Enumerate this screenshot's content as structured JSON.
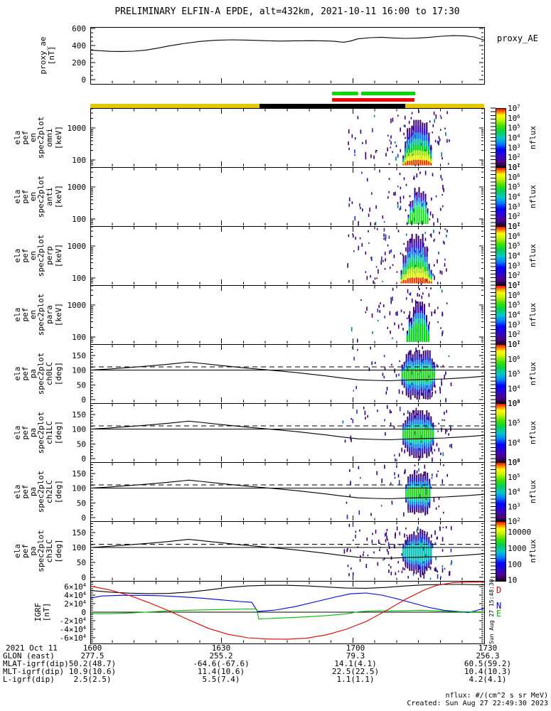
{
  "title": "PRELIMINARY ELFIN-A EPDE, alt=432km, 2021-10-11 16:00 to 17:30",
  "footer": {
    "units": "nflux: #/(cm^2 s sr MeV)",
    "created": "Created: Sun Aug 27 22:49:30 2023"
  },
  "side_timestamp": "Sun Aug 27 15:48:30",
  "colorbar_title": "nflux",
  "time_ticks": {
    "labels": [
      "1600",
      "1630",
      "1700",
      "1730"
    ],
    "fracs": [
      0,
      0.3333,
      0.6667,
      1
    ]
  },
  "axis_rows": [
    {
      "label": "2021 Oct 11",
      "values": [
        "1600",
        "1630",
        "1700",
        "1730"
      ]
    },
    {
      "label": "GLON (east)",
      "values": [
        "277.5",
        "255.2",
        "79.3",
        "256.3"
      ]
    },
    {
      "label": "MLAT-igrf(dip)",
      "values": [
        "50.2(48.7)",
        "-64.6(-67.6)",
        "14.1(4.1)",
        "60.5(59.2)"
      ]
    },
    {
      "label": "MLT-igrf(dip)",
      "values": [
        "10.9(10.6)",
        "11.4(10.6)",
        "22.5(22.5)",
        "10.4(10.3)"
      ]
    },
    {
      "label": "L-igrf(dip)",
      "values": [
        "2.5(2.5)",
        "5.5(7.4)",
        "1.1(1.1)",
        "4.2(4.1)"
      ]
    }
  ],
  "status_bars": {
    "green": {
      "color": "#00d800",
      "y": 129,
      "h": 5,
      "segments": [
        [
          0.614,
          0.68
        ],
        [
          0.688,
          0.825
        ]
      ]
    },
    "red": {
      "color": "#ee0000",
      "y": 138,
      "h": 5,
      "segments": [
        [
          0.614,
          0.823
        ]
      ]
    },
    "strip": {
      "y": 146,
      "h": 6,
      "segments": [
        {
          "x": [
            0,
            0.4296
          ],
          "color": "#e3c800"
        },
        {
          "x": [
            0.4296,
            0.7996
          ],
          "color": "#000000"
        },
        {
          "x": [
            0.7996,
            1
          ],
          "color": "#e3c800"
        }
      ]
    }
  },
  "rainbow_stops": [
    [
      "0",
      "#120024"
    ],
    [
      "0.09",
      "#4b0082"
    ],
    [
      "0.19",
      "#3300cc"
    ],
    [
      "0.30",
      "#0000ff"
    ],
    [
      "0.40",
      "#0080ff"
    ],
    [
      "0.50",
      "#00c8c8"
    ],
    [
      "0.60",
      "#00d050"
    ],
    [
      "0.70",
      "#40e000"
    ],
    [
      "0.80",
      "#c8f000"
    ],
    [
      "0.88",
      "#ffff00"
    ],
    [
      "0.94",
      "#ff8000"
    ],
    [
      "1",
      "#ff0000"
    ]
  ],
  "pitch_line": {
    "x": [
      0,
      0.05,
      0.1,
      0.15,
      0.2,
      0.25,
      0.28,
      0.33,
      0.38,
      0.43,
      0.48,
      0.52,
      0.56,
      0.6,
      0.64,
      0.68,
      0.72,
      0.76,
      0.8,
      0.85,
      0.9,
      0.95,
      1
    ],
    "deg": [
      100,
      104,
      109,
      114,
      120,
      127,
      123,
      116,
      109,
      103,
      97,
      92,
      86,
      80,
      73,
      67,
      65,
      64,
      66,
      68,
      70,
      74,
      79
    ]
  },
  "chart_data": [
    {
      "id": "proxy_ae",
      "type": "line",
      "ylabel_lines": [
        "proxy_ae",
        "[nT]"
      ],
      "right_label": "proxy_AE",
      "ytick_labels": [
        "600",
        "400",
        "200",
        "0"
      ],
      "ytick_values": [
        600,
        400,
        200,
        0
      ],
      "ylim": [
        -50,
        617
      ],
      "x_start": "1600",
      "x_end": "1730",
      "x": [
        0,
        0.02,
        0.05,
        0.08,
        0.11,
        0.14,
        0.17,
        0.2,
        0.24,
        0.28,
        0.32,
        0.36,
        0.4,
        0.44,
        0.48,
        0.52,
        0.56,
        0.6,
        0.62,
        0.635,
        0.645,
        0.66,
        0.68,
        0.71,
        0.74,
        0.77,
        0.8,
        0.83,
        0.86,
        0.89,
        0.92,
        0.95,
        0.975,
        1
      ],
      "y": [
        345,
        340,
        332,
        330,
        333,
        345,
        368,
        395,
        425,
        448,
        462,
        467,
        463,
        457,
        452,
        455,
        457,
        453,
        449,
        441,
        439,
        452,
        478,
        492,
        497,
        488,
        483,
        487,
        495,
        508,
        516,
        513,
        500,
        463
      ],
      "line_color": "#000000"
    },
    {
      "id": "ela_pef_en_spec2plot_omni",
      "type": "spectrogram",
      "kind": "energy",
      "ylabel_lines": [
        "ela",
        "pef",
        "en",
        "spec2plot",
        "omni",
        "[keV]"
      ],
      "ytick_labels": [
        "1000",
        "100"
      ],
      "yscale": "log",
      "ylim": [
        60,
        4200
      ],
      "unit": "keV",
      "zlabel": "nflux",
      "colorbar_ticks": [
        "10^7",
        "10^6",
        "10^5",
        "10^4",
        "10^3",
        "10^2",
        "10^1"
      ],
      "blob": {
        "x0": 0.793,
        "x1": 0.868,
        "top_frac": 0.2,
        "bot_frac": 0.97,
        "has_red": true,
        "peak_flux": "1e6-1e7",
        "peak_energy_keV": [
          80,
          300
        ]
      },
      "scatter": {
        "x0": 0.65,
        "x1": 0.91,
        "n": 90
      }
    },
    {
      "id": "ela_pef_en_spec2plot_anti",
      "type": "spectrogram",
      "kind": "energy",
      "ylabel_lines": [
        "ela",
        "pef",
        "en",
        "spec2plot",
        "anti",
        "[keV]"
      ],
      "ytick_labels": [
        "1000",
        "100"
      ],
      "yscale": "log",
      "ylim": [
        60,
        4200
      ],
      "unit": "keV",
      "zlabel": "nflux",
      "colorbar_ticks": [
        "10^7",
        "10^6",
        "10^5",
        "10^4",
        "10^3",
        "10^2",
        "10^1"
      ],
      "blob": {
        "x0": 0.806,
        "x1": 0.858,
        "top_frac": 0.34,
        "bot_frac": 0.96,
        "has_red": false
      },
      "scatter": {
        "x0": 0.65,
        "x1": 0.91,
        "n": 70
      }
    },
    {
      "id": "ela_pef_en_spec2plot_perp",
      "type": "spectrogram",
      "kind": "energy",
      "ylabel_lines": [
        "ela",
        "pef",
        "en",
        "spec2plot",
        "perp",
        "[keV]"
      ],
      "ytick_labels": [
        "1000",
        "100"
      ],
      "yscale": "log",
      "ylim": [
        60,
        4200
      ],
      "unit": "keV",
      "zlabel": "nflux",
      "colorbar_ticks": [
        "10^7",
        "10^6",
        "10^5",
        "10^4",
        "10^3",
        "10^2",
        "10^1"
      ],
      "blob": {
        "x0": 0.788,
        "x1": 0.864,
        "top_frac": 0.13,
        "bot_frac": 0.97,
        "has_red": true
      },
      "scatter": {
        "x0": 0.65,
        "x1": 0.91,
        "n": 95
      }
    },
    {
      "id": "ela_pef_en_spec2plot_para",
      "type": "spectrogram",
      "kind": "energy",
      "ylabel_lines": [
        "ela",
        "pef",
        "en",
        "spec2plot",
        "para",
        "[keV]"
      ],
      "ytick_labels": [
        "1000",
        "100"
      ],
      "yscale": "log",
      "ylim": [
        60,
        4200
      ],
      "unit": "keV",
      "zlabel": "nflux",
      "colorbar_ticks": [
        "10^7",
        "10^6",
        "10^5",
        "10^4",
        "10^3",
        "10^2",
        "10^1"
      ],
      "blob": {
        "x0": 0.803,
        "x1": 0.86,
        "top_frac": 0.28,
        "bot_frac": 0.96,
        "has_red": false
      },
      "scatter": {
        "x0": 0.65,
        "x1": 0.91,
        "n": 75
      }
    },
    {
      "id": "ela_pef_pa_spec2plot_ch0LC",
      "type": "spectrogram",
      "kind": "pitch",
      "ylabel_lines": [
        "ela",
        "pef",
        "pa",
        "spec2plot",
        "ch0LC",
        "[deg]"
      ],
      "ytick_labels": [
        "150",
        "100",
        "50",
        "0"
      ],
      "ytick_values": [
        150,
        100,
        50,
        0
      ],
      "ylim": [
        -12,
        188
      ],
      "unit": "deg",
      "zlabel": "nflux",
      "colorbar_ticks": [
        "10^7",
        "10^6",
        "10^5",
        "10^4",
        "10^3"
      ],
      "lines": {
        "solid_y": 100,
        "dashed_y": 111
      },
      "blob": {
        "x0": 0.79,
        "x1": 0.876,
        "top_frac": 0.1,
        "bot_frac": 0.94
      },
      "scatter": {
        "x0": 0.64,
        "x1": 0.92,
        "n": 70
      }
    },
    {
      "id": "ela_pef_pa_spec2plot_ch1LC",
      "type": "spectrogram",
      "kind": "pitch",
      "ylabel_lines": [
        "ela",
        "pef",
        "pa",
        "spec2plot",
        "ch1LC",
        "[deg]"
      ],
      "ytick_labels": [
        "150",
        "100",
        "50",
        "0"
      ],
      "ytick_values": [
        150,
        100,
        50,
        0
      ],
      "ylim": [
        -12,
        188
      ],
      "unit": "deg",
      "zlabel": "nflux",
      "colorbar_ticks": [
        "10^6",
        "10^5",
        "10^4",
        "10^3"
      ],
      "lines": {
        "solid_y": 100,
        "dashed_y": 111
      },
      "blob": {
        "x0": 0.793,
        "x1": 0.872,
        "top_frac": 0.12,
        "bot_frac": 0.93
      },
      "scatter": {
        "x0": 0.64,
        "x1": 0.92,
        "n": 70
      }
    },
    {
      "id": "ela_pef_pa_spec2plot_ch2LC",
      "type": "spectrogram",
      "kind": "pitch",
      "ylabel_lines": [
        "ela",
        "pef",
        "pa",
        "spec2plot",
        "ch2LC",
        "[deg]"
      ],
      "ytick_labels": [
        "150",
        "100",
        "50",
        "0"
      ],
      "ytick_values": [
        150,
        100,
        50,
        0
      ],
      "ylim": [
        -12,
        188
      ],
      "unit": "deg",
      "zlabel": "nflux",
      "colorbar_ticks": [
        "10^6",
        "10^5",
        "10^4",
        "10^3",
        "10^2"
      ],
      "lines": {
        "solid_y": 100,
        "dashed_y": 111
      },
      "blob": {
        "x0": 0.8,
        "x1": 0.864,
        "top_frac": 0.14,
        "bot_frac": 0.92
      },
      "scatter": {
        "x0": 0.64,
        "x1": 0.92,
        "n": 60
      }
    },
    {
      "id": "ela_pef_pa_spec2plot_ch3LC",
      "type": "spectrogram",
      "kind": "pitch",
      "ylabel_lines": [
        "ela",
        "pef",
        "pa",
        "spec2plot",
        "ch3LC",
        "[deg]"
      ],
      "ytick_labels": [
        "150",
        "100",
        "50",
        "0"
      ],
      "ytick_values": [
        150,
        100,
        50,
        0
      ],
      "ylim": [
        -12,
        188
      ],
      "unit": "deg",
      "zlabel": "nflux",
      "colorbar_ticks": [
        "10000",
        "1000",
        "100",
        "10"
      ],
      "cb_fracs": [
        0.18,
        0.45,
        0.72,
        0.98
      ],
      "lines": {
        "solid_y": 100,
        "dashed_y": 111
      },
      "blob": {
        "x0": 0.793,
        "x1": 0.868,
        "top_frac": 0.12,
        "bot_frac": 0.93,
        "weak": true
      },
      "scatter": {
        "x0": 0.62,
        "x1": 0.92,
        "n": 130
      }
    },
    {
      "id": "igrf",
      "type": "line",
      "ylabel_lines": [
        "IGRF",
        "[nT]"
      ],
      "ytick_labels": [
        "6×10^4",
        "4×10^4",
        "2×10^4",
        "0",
        "-2×10^4",
        "-4×10^4",
        "-6×10^4"
      ],
      "ytick_values": [
        60000,
        40000,
        20000,
        0,
        -20000,
        -40000,
        -60000
      ],
      "ylim": [
        -73000,
        73000
      ],
      "legend": [
        {
          "label": "D",
          "color": "#dd0000"
        },
        {
          "label": "N",
          "color": "#0000dd"
        },
        {
          "label": "E",
          "color": "#00bb00"
        }
      ],
      "series": [
        {
          "name": "B",
          "color": "#000000",
          "x": [
            0,
            0.05,
            0.1,
            0.15,
            0.2,
            0.25,
            0.3,
            0.35,
            0.4,
            0.45,
            0.5,
            0.55,
            0.6,
            0.65,
            0.7,
            0.75,
            0.8,
            0.85,
            0.9,
            0.95,
            1
          ],
          "y": [
            51000,
            47000,
            44500,
            43500,
            44000,
            47000,
            52000,
            58000,
            61500,
            63000,
            63000,
            61500,
            59000,
            56500,
            56000,
            58000,
            61500,
            64000,
            65000,
            65000,
            64000
          ]
        },
        {
          "name": "N",
          "color": "#0000dd",
          "x": [
            0,
            0.03,
            0.08,
            0.13,
            0.18,
            0.23,
            0.28,
            0.33,
            0.38,
            0.41,
            0.425,
            0.43,
            0.47,
            0.52,
            0.57,
            0.62,
            0.66,
            0.7,
            0.74,
            0.78,
            0.82,
            0.86,
            0.9,
            0.93,
            0.96,
            1
          ],
          "y": [
            33000,
            38000,
            39500,
            39500,
            38500,
            36000,
            33000,
            29000,
            25000,
            23000,
            1500,
            2000,
            5000,
            13000,
            24000,
            35000,
            43000,
            45000,
            40000,
            31000,
            21000,
            11000,
            4000,
            2000,
            -1000,
            9000
          ]
        },
        {
          "name": "E",
          "color": "#00bb00",
          "x": [
            0,
            0.05,
            0.1,
            0.15,
            0.2,
            0.25,
            0.3,
            0.35,
            0.4,
            0.422,
            0.428,
            0.45,
            0.5,
            0.55,
            0.6,
            0.65,
            0.68,
            0.72,
            0.76,
            0.8,
            0.84,
            0.88,
            0.92,
            0.96,
            1
          ],
          "y": [
            -3500,
            -3500,
            -2000,
            500,
            3000,
            4500,
            5500,
            6500,
            7500,
            7500,
            -16000,
            -15000,
            -13000,
            -11000,
            -8000,
            -4000,
            1000,
            3000,
            3000,
            3500,
            4500,
            3000,
            1500,
            1000,
            1000
          ]
        },
        {
          "name": "D",
          "color": "#dd0000",
          "x": [
            0,
            0.05,
            0.1,
            0.15,
            0.2,
            0.25,
            0.3,
            0.35,
            0.4,
            0.45,
            0.5,
            0.55,
            0.6,
            0.65,
            0.7,
            0.75,
            0.8,
            0.85,
            0.88,
            0.92,
            0.96,
            1
          ],
          "y": [
            61000,
            52000,
            39000,
            22000,
            3000,
            -18000,
            -38000,
            -52000,
            -60000,
            -63000,
            -63500,
            -61000,
            -53000,
            -40000,
            -22000,
            3000,
            30000,
            53000,
            63000,
            69000,
            70500,
            70500
          ]
        }
      ]
    }
  ]
}
